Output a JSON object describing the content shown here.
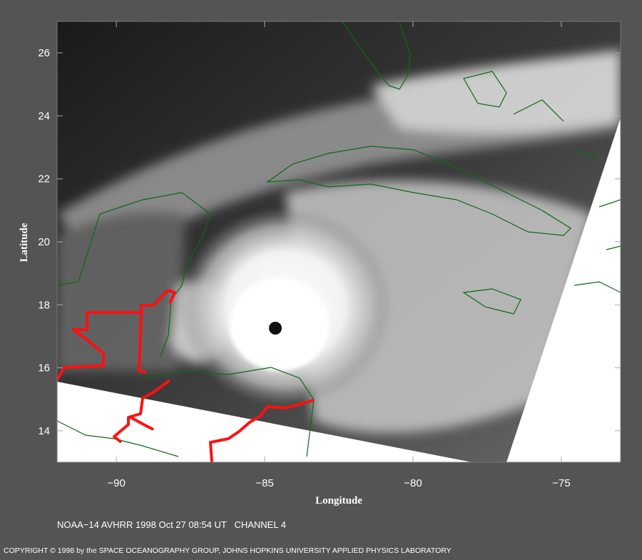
{
  "map": {
    "type": "map",
    "xlabel": "Longitude",
    "ylabel": "Latitude",
    "xlim": [
      -92,
      -73
    ],
    "ylim": [
      13,
      27
    ],
    "xticks": [
      {
        "value": -90,
        "label": "−90"
      },
      {
        "value": -85,
        "label": "−85"
      },
      {
        "value": -80,
        "label": "−80"
      },
      {
        "value": -75,
        "label": "−75"
      }
    ],
    "yticks": [
      14,
      16,
      18,
      20,
      22,
      24,
      26
    ]
  },
  "caption": "NOAA−14 AVHRR 1998 Oct 27 08:54 UT   CHANNEL 4",
  "copyright": "COPYRIGHT © 1998 by the SPACE OCEANOGRAPHY GROUP, JOHNS HOPKINS UNIVERSITY APPLIED PHYSICS LABORATORY"
}
